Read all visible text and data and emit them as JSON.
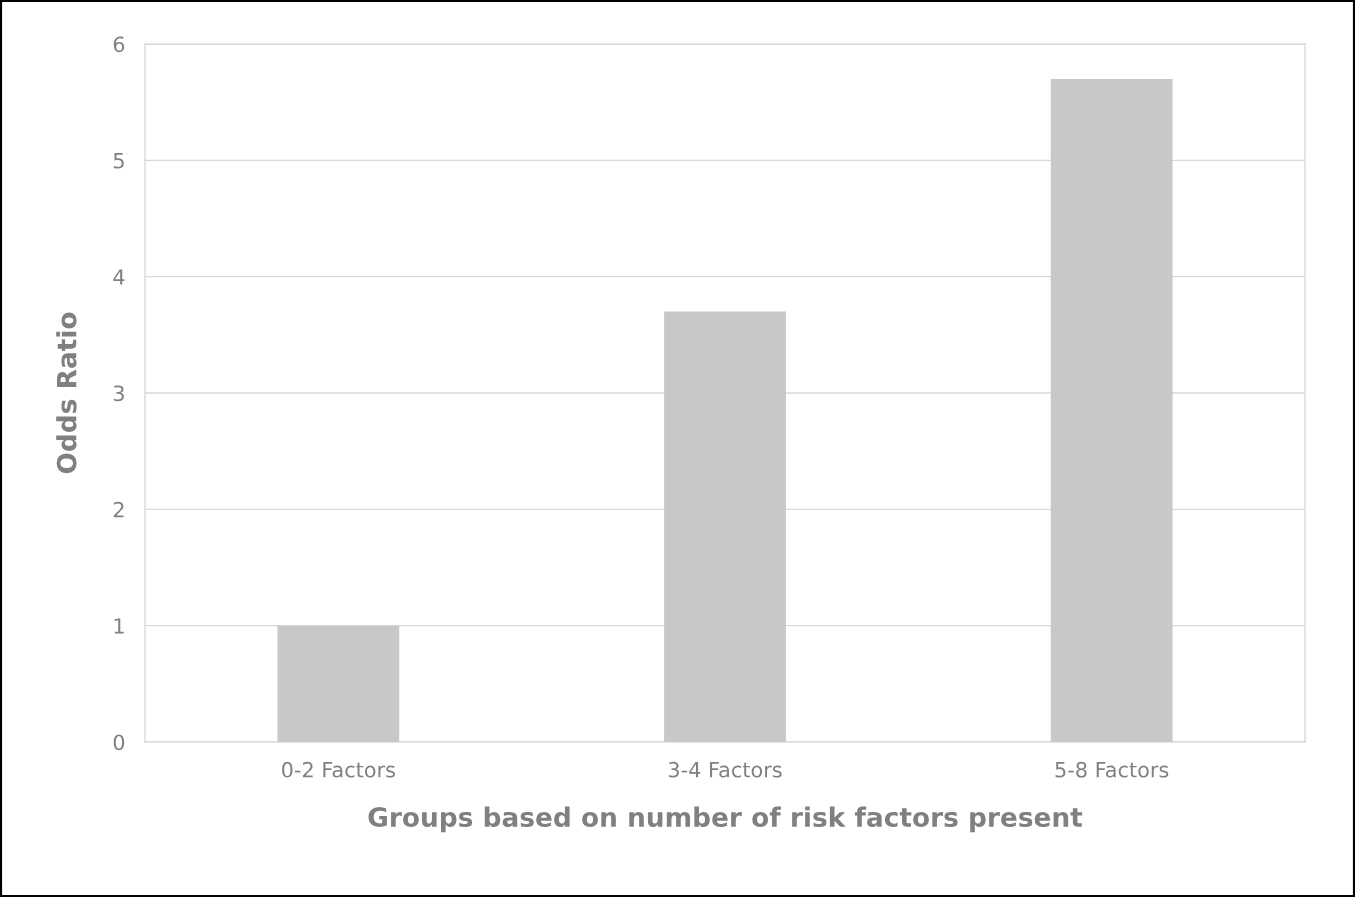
{
  "chart_data": {
    "type": "bar",
    "xlabel": "Groups based on number of risk factors present",
    "ylabel": "Odds Ratio",
    "categories": [
      "0-2 Factors",
      "3-4 Factors",
      "5-8 Factors"
    ],
    "values": [
      1.0,
      3.7,
      5.7
    ],
    "color": "#c8c8c8",
    "ylim": [
      0,
      6
    ],
    "yticks": [
      0,
      1,
      2,
      3,
      4,
      5,
      6
    ],
    "grid": "y"
  }
}
